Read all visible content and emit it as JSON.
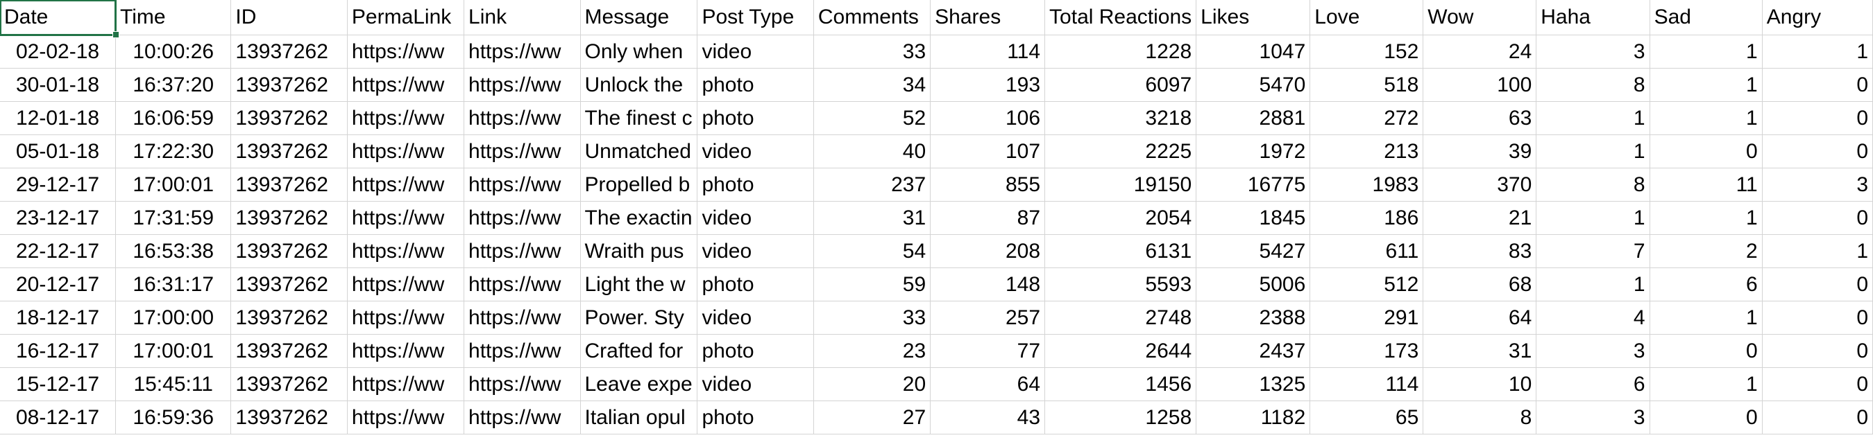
{
  "sheet": {
    "headers": [
      "Date",
      "Time",
      "ID",
      "PermaLink",
      "Link",
      "Message",
      "Post Type",
      "Comments",
      "Shares",
      "Total Reactions",
      "Likes",
      "Love",
      "Wow",
      "Haha",
      "Sad",
      "Angry"
    ],
    "rows": [
      [
        "02-02-18",
        "10:00:26",
        "13937262",
        "https://ww",
        "https://ww",
        "Only when",
        "video",
        "33",
        "114",
        "1228",
        "1047",
        "152",
        "24",
        "3",
        "1",
        "1"
      ],
      [
        "30-01-18",
        "16:37:20",
        "13937262",
        "https://ww",
        "https://ww",
        "Unlock the",
        "photo",
        "34",
        "193",
        "6097",
        "5470",
        "518",
        "100",
        "8",
        "1",
        "0"
      ],
      [
        "12-01-18",
        "16:06:59",
        "13937262",
        "https://ww",
        "https://ww",
        "The finest c",
        "photo",
        "52",
        "106",
        "3218",
        "2881",
        "272",
        "63",
        "1",
        "1",
        "0"
      ],
      [
        "05-01-18",
        "17:22:30",
        "13937262",
        "https://ww",
        "https://ww",
        "Unmatched",
        "video",
        "40",
        "107",
        "2225",
        "1972",
        "213",
        "39",
        "1",
        "0",
        "0"
      ],
      [
        "29-12-17",
        "17:00:01",
        "13937262",
        "https://ww",
        "https://ww",
        "Propelled b",
        "photo",
        "237",
        "855",
        "19150",
        "16775",
        "1983",
        "370",
        "8",
        "11",
        "3"
      ],
      [
        "23-12-17",
        "17:31:59",
        "13937262",
        "https://ww",
        "https://ww",
        "The exactin",
        "video",
        "31",
        "87",
        "2054",
        "1845",
        "186",
        "21",
        "1",
        "1",
        "0"
      ],
      [
        "22-12-17",
        "16:53:38",
        "13937262",
        "https://ww",
        "https://ww",
        "Wraith pus",
        "video",
        "54",
        "208",
        "6131",
        "5427",
        "611",
        "83",
        "7",
        "2",
        "1"
      ],
      [
        "20-12-17",
        "16:31:17",
        "13937262",
        "https://ww",
        "https://ww",
        "Light the w",
        "photo",
        "59",
        "148",
        "5593",
        "5006",
        "512",
        "68",
        "1",
        "6",
        "0"
      ],
      [
        "18-12-17",
        "17:00:00",
        "13937262",
        "https://ww",
        "https://ww",
        "Power. Sty",
        "video",
        "33",
        "257",
        "2748",
        "2388",
        "291",
        "64",
        "4",
        "1",
        "0"
      ],
      [
        "16-12-17",
        "17:00:01",
        "13937262",
        "https://ww",
        "https://ww",
        "Crafted for",
        "photo",
        "23",
        "77",
        "2644",
        "2437",
        "173",
        "31",
        "3",
        "0",
        "0"
      ],
      [
        "15-12-17",
        "15:45:11",
        "13937262",
        "https://ww",
        "https://ww",
        "Leave expe",
        "video",
        "20",
        "64",
        "1456",
        "1325",
        "114",
        "10",
        "6",
        "1",
        "0"
      ],
      [
        "08-12-17",
        "16:59:36",
        "13937262",
        "https://ww",
        "https://ww",
        "Italian opul",
        "photo",
        "27",
        "43",
        "1258",
        "1182",
        "65",
        "8",
        "3",
        "0",
        "0"
      ]
    ]
  },
  "colors": {
    "grid": "#d4d4d4",
    "selection": "#217346"
  }
}
